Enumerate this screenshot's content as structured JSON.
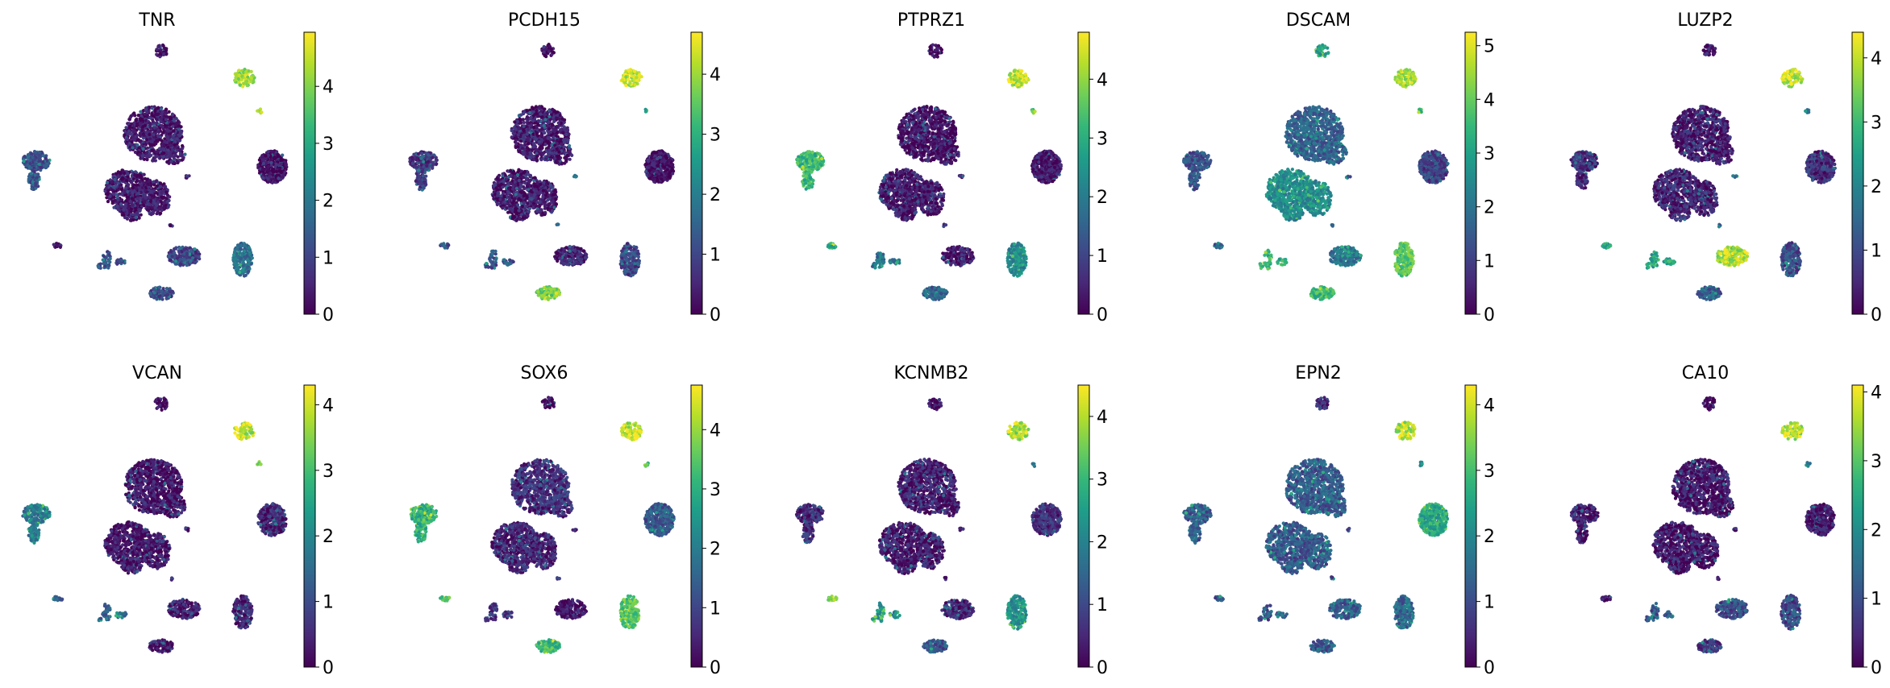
{
  "chart_data": {
    "type": "scatter",
    "description_kind": "umap-feature-plot-grid",
    "colormap": {
      "name": "viridis",
      "stops": [
        "#440154",
        "#482878",
        "#3e4989",
        "#31688e",
        "#26828e",
        "#1f9e89",
        "#35b779",
        "#6ece58",
        "#b5de2b",
        "#fde725"
      ]
    },
    "panels": [
      {
        "title": "TNR",
        "vmax": 4.95,
        "ticks": [
          0,
          1,
          2,
          3,
          4
        ],
        "tick_labels": [
          "0",
          "1",
          "2",
          "3",
          "4"
        ],
        "cluster_levels": {
          "top_small": 0.1,
          "top_right": 4.2,
          "tiny_right": 4.0,
          "large_upper": 0.3,
          "left": 1.2,
          "right_blob": 0.2,
          "large_lower": 0.3,
          "small_mid": 0.3,
          "left_small": 0.3,
          "lower_left": 1.3,
          "mid_lower": 1.0,
          "right_lower": 1.8,
          "bottom": 1.0
        }
      },
      {
        "title": "PCDH15",
        "vmax": 4.7,
        "ticks": [
          0,
          1,
          2,
          3,
          4
        ],
        "tick_labels": [
          "0",
          "1",
          "2",
          "3",
          "4"
        ],
        "cluster_levels": {
          "top_small": 0.1,
          "top_right": 4.3,
          "tiny_right": 3.0,
          "large_upper": 0.3,
          "left": 0.8,
          "right_blob": 0.2,
          "large_lower": 0.3,
          "small_mid": 1.5,
          "left_small": 1.2,
          "lower_left": 1.2,
          "mid_lower": 0.4,
          "right_lower": 1.0,
          "bottom": 3.6
        }
      },
      {
        "title": "PTPRZ1",
        "vmax": 4.8,
        "ticks": [
          0,
          1,
          2,
          3,
          4
        ],
        "tick_labels": [
          "0",
          "1",
          "2",
          "3",
          "4"
        ],
        "cluster_levels": {
          "top_small": 0.1,
          "top_right": 4.3,
          "tiny_right": 3.5,
          "large_upper": 0.2,
          "left": 3.2,
          "right_blob": 0.3,
          "large_lower": 0.3,
          "small_mid": 0.5,
          "left_small": 3.1,
          "lower_left": 1.8,
          "mid_lower": 0.3,
          "right_lower": 2.3,
          "bottom": 1.5
        }
      },
      {
        "title": "DSCAM",
        "vmax": 5.25,
        "ticks": [
          0,
          1,
          2,
          3,
          4,
          5
        ],
        "tick_labels": [
          "0",
          "1",
          "2",
          "3",
          "4",
          "5"
        ],
        "cluster_levels": {
          "top_small": 3.0,
          "top_right": 4.5,
          "tiny_right": 3.5,
          "large_upper": 1.6,
          "left": 1.3,
          "right_blob": 1.0,
          "large_lower": 2.5,
          "small_mid": 1.5,
          "left_small": 1.5,
          "lower_left": 3.3,
          "mid_lower": 2.0,
          "right_lower": 3.8,
          "bottom": 3.5
        }
      },
      {
        "title": "LUZP2",
        "vmax": 4.4,
        "ticks": [
          0,
          1,
          2,
          3,
          4
        ],
        "tick_labels": [
          "0",
          "1",
          "2",
          "3",
          "4"
        ],
        "cluster_levels": {
          "top_small": 0.2,
          "top_right": 3.9,
          "tiny_right": 2.0,
          "large_upper": 0.3,
          "left": 0.6,
          "right_blob": 0.6,
          "large_lower": 0.4,
          "small_mid": 1.5,
          "left_small": 2.5,
          "lower_left": 2.6,
          "mid_lower": 3.8,
          "right_lower": 1.0,
          "bottom": 1.3
        }
      },
      {
        "title": "VCAN",
        "vmax": 4.3,
        "ticks": [
          0,
          1,
          2,
          3,
          4
        ],
        "tick_labels": [
          "0",
          "1",
          "2",
          "3",
          "4"
        ],
        "cluster_levels": {
          "top_small": 0.1,
          "top_right": 3.8,
          "tiny_right": 3.2,
          "large_upper": 0.2,
          "left": 1.8,
          "right_blob": 0.5,
          "large_lower": 0.2,
          "small_mid": 0.3,
          "left_small": 1.5,
          "lower_left": 1.5,
          "mid_lower": 0.3,
          "right_lower": 0.4,
          "bottom": 0.3
        }
      },
      {
        "title": "SOX6",
        "vmax": 4.75,
        "ticks": [
          0,
          1,
          2,
          3,
          4
        ],
        "tick_labels": [
          "0",
          "1",
          "2",
          "3",
          "4"
        ],
        "cluster_levels": {
          "top_small": 0.1,
          "top_right": 4.2,
          "tiny_right": 3.5,
          "large_upper": 0.6,
          "left": 3.0,
          "right_blob": 1.3,
          "large_lower": 0.5,
          "small_mid": 0.5,
          "left_small": 3.5,
          "lower_left": 0.8,
          "mid_lower": 0.3,
          "right_lower": 3.5,
          "bottom": 3.2
        }
      },
      {
        "title": "KCNMB2",
        "vmax": 4.5,
        "ticks": [
          0,
          1,
          2,
          3,
          4
        ],
        "tick_labels": [
          "0",
          "1",
          "2",
          "3",
          "4"
        ],
        "cluster_levels": {
          "top_small": 0.2,
          "top_right": 3.9,
          "tiny_right": 2.0,
          "large_upper": 0.3,
          "left": 0.5,
          "right_blob": 0.6,
          "large_lower": 0.3,
          "small_mid": 0.6,
          "left_small": 3.6,
          "lower_left": 2.3,
          "mid_lower": 0.5,
          "right_lower": 2.3,
          "bottom": 1.2
        }
      },
      {
        "title": "EPN2",
        "vmax": 4.3,
        "ticks": [
          0,
          1,
          2,
          3,
          4
        ],
        "tick_labels": [
          "0",
          "1",
          "2",
          "3",
          "4"
        ],
        "cluster_levels": {
          "top_small": 0.6,
          "top_right": 3.8,
          "tiny_right": 2.0,
          "large_upper": 1.2,
          "left": 1.3,
          "right_blob": 2.6,
          "large_lower": 1.2,
          "small_mid": 0.8,
          "left_small": 1.2,
          "lower_left": 1.1,
          "mid_lower": 1.3,
          "right_lower": 1.4,
          "bottom": 1.2
        }
      },
      {
        "title": "CA10",
        "vmax": 4.1,
        "ticks": [
          0,
          1,
          2,
          3,
          4
        ],
        "tick_labels": [
          "0",
          "1",
          "2",
          "3",
          "4"
        ],
        "cluster_levels": {
          "top_small": 0.1,
          "top_right": 3.6,
          "tiny_right": 1.5,
          "large_upper": 0.2,
          "left": 0.2,
          "right_blob": 0.2,
          "large_lower": 0.2,
          "small_mid": 0.3,
          "left_small": 0.3,
          "lower_left": 1.2,
          "mid_lower": 1.0,
          "right_lower": 0.9,
          "bottom": 0.8
        }
      }
    ]
  }
}
